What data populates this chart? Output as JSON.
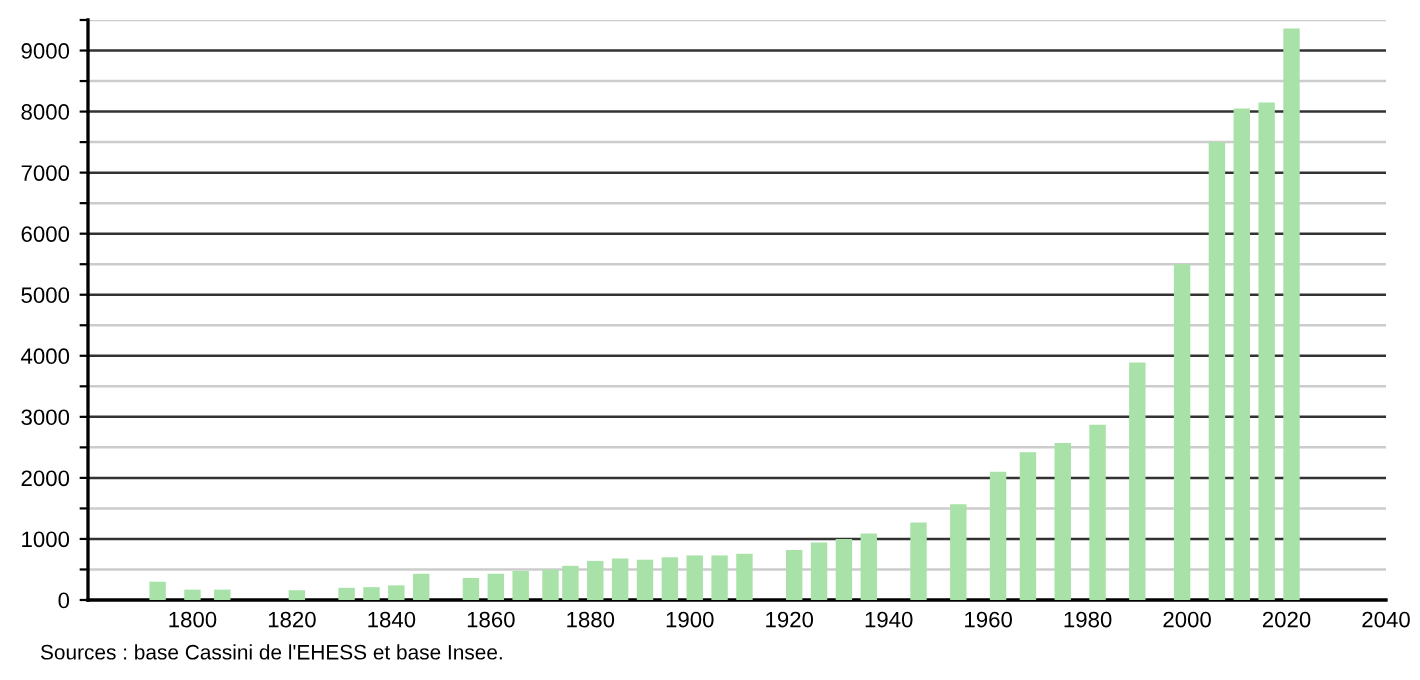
{
  "chart_data": {
    "type": "bar",
    "color": "#a8e2a8",
    "x": [
      1793,
      1800,
      1806,
      1821,
      1831,
      1836,
      1841,
      1846,
      1856,
      1861,
      1866,
      1872,
      1876,
      1881,
      1886,
      1891,
      1896,
      1901,
      1906,
      1911,
      1921,
      1926,
      1931,
      1936,
      1946,
      1954,
      1962,
      1968,
      1975,
      1982,
      1990,
      1999,
      2006,
      2011,
      2016,
      2021
    ],
    "values": [
      300,
      170,
      170,
      160,
      200,
      210,
      240,
      430,
      360,
      430,
      475,
      500,
      560,
      640,
      680,
      660,
      700,
      730,
      730,
      757,
      820,
      940,
      1000,
      1090,
      1270,
      1570,
      2100,
      2420,
      2570,
      2870,
      3890,
      5500,
      7500,
      8050,
      8150,
      9360
    ],
    "xlim": [
      1779,
      2040
    ],
    "xticks": [
      1800,
      1820,
      1840,
      1860,
      1880,
      1900,
      1920,
      1940,
      1960,
      1980,
      2000,
      2020,
      2040
    ],
    "ylim": [
      0,
      9500
    ],
    "yticks": [
      0,
      {
        "value": 500,
        "label": null
      },
      1000,
      {
        "value": 1500,
        "label": null
      },
      2000,
      {
        "value": 2500,
        "label": null
      },
      3000,
      {
        "value": 3500,
        "label": null
      },
      4000,
      {
        "value": 4500,
        "label": null
      },
      5000,
      {
        "value": 5500,
        "label": null
      },
      6000,
      {
        "value": 6500,
        "label": null
      },
      7000,
      {
        "value": 7500,
        "label": null
      },
      8000,
      {
        "value": 8500,
        "label": null
      },
      9000,
      {
        "value": 9500,
        "label": null
      }
    ],
    "grid": "y",
    "annotations": [
      "Sources : base Cassini de l'EHESS et base Insee."
    ]
  }
}
